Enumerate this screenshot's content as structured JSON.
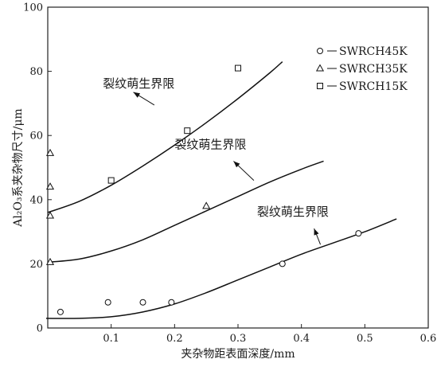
{
  "chart_data": {
    "type": "scatter",
    "xlabel": "夹杂物距表面深度/mm",
    "ylabel": "Al₂O₃系夹杂物尺寸/μm",
    "xlim": [
      0,
      0.6
    ],
    "ylim": [
      0,
      100
    ],
    "xticks": [
      0.1,
      0.2,
      0.3,
      0.4,
      0.5,
      0.6
    ],
    "xtick_labels": [
      "0.1",
      "0.2",
      "0.3",
      "0.4",
      "0.5",
      "0.6"
    ],
    "yticks": [
      0,
      20,
      40,
      60,
      80,
      100
    ],
    "ytick_labels": [
      "0",
      "20",
      "40",
      "60",
      "80",
      "100"
    ],
    "grid": false,
    "legend_position": "top-right",
    "series": [
      {
        "name": "SWRCH45K",
        "marker": "circle",
        "points": [
          [
            0.02,
            5
          ],
          [
            0.095,
            8
          ],
          [
            0.15,
            8
          ],
          [
            0.195,
            8
          ],
          [
            0.37,
            20
          ],
          [
            0.49,
            29.5
          ]
        ]
      },
      {
        "name": "SWRCH35K",
        "marker": "triangle",
        "points": [
          [
            0.002,
            54.5
          ],
          [
            0.0,
            44
          ],
          [
            0.003,
            35
          ],
          [
            0.002,
            20.5
          ],
          [
            0.25,
            38
          ]
        ]
      },
      {
        "name": "SWRCH15K",
        "marker": "square",
        "points": [
          [
            0.1,
            46
          ],
          [
            0.22,
            61.5
          ],
          [
            0.3,
            81
          ]
        ]
      }
    ],
    "curves": [
      {
        "x": [
          -0.01,
          0.05,
          0.1,
          0.15,
          0.2,
          0.25,
          0.3,
          0.35,
          0.4,
          0.45,
          0.5,
          0.55
        ],
        "y": [
          3,
          3,
          3.5,
          5,
          7.5,
          11,
          15,
          19,
          23,
          26.5,
          30,
          34
        ]
      },
      {
        "x": [
          0.0,
          0.05,
          0.1,
          0.15,
          0.2,
          0.25,
          0.3,
          0.35,
          0.4,
          0.435
        ],
        "y": [
          20.5,
          21.5,
          24,
          27.5,
          32,
          36.5,
          41,
          45.5,
          49.5,
          52
        ]
      },
      {
        "x": [
          0.0,
          0.05,
          0.1,
          0.15,
          0.2,
          0.25,
          0.3,
          0.35,
          0.37
        ],
        "y": [
          36,
          39.5,
          44.5,
          50.5,
          57,
          64,
          71.5,
          79.5,
          83
        ]
      }
    ],
    "annotations": [
      {
        "text": "裂纹萌生界限",
        "anchor": [
          0.087,
          75
        ],
        "arrow_from": [
          0.168,
          69.5
        ],
        "arrow_to": [
          0.135,
          73.5
        ]
      },
      {
        "text": "裂纹萌生界限",
        "anchor": [
          0.2,
          56
        ],
        "arrow_from": [
          0.325,
          46
        ],
        "arrow_to": [
          0.293,
          52
        ]
      },
      {
        "text": "裂纹萌生界限",
        "anchor": [
          0.33,
          35
        ],
        "arrow_from": [
          0.43,
          26
        ],
        "arrow_to": [
          0.42,
          31
        ]
      }
    ]
  }
}
